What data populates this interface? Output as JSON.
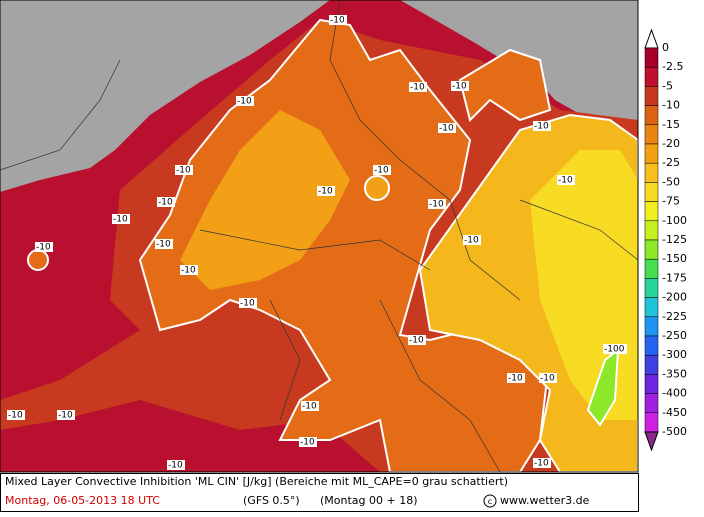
{
  "legend": {
    "labels": [
      0,
      -2.5,
      -5,
      -10,
      -15,
      -20,
      -25,
      -50,
      -75,
      -100,
      -125,
      -150,
      -175,
      -200,
      -225,
      -250,
      -300,
      -350,
      -400,
      -450,
      -500
    ],
    "colors": [
      "#a8002c",
      "#c01030",
      "#c8381e",
      "#dc6214",
      "#ec8410",
      "#f4a014",
      "#f8be1c",
      "#f8dc24",
      "#f0f020",
      "#c4f020",
      "#8ce828",
      "#48dc50",
      "#28d49c",
      "#20c4d8",
      "#2094f0",
      "#2464f0",
      "#4040e0",
      "#7024e0",
      "#a020e0",
      "#d020e0"
    ],
    "top_color": "#ffffff",
    "bottom_color": "#8a2a8a"
  },
  "contour_labels": [
    -10,
    -10,
    -10,
    -10,
    -10,
    -10,
    -10,
    -10,
    -10,
    -10,
    -10,
    -10,
    -10,
    -10,
    -10,
    -10,
    -10,
    -10,
    -10,
    -10,
    -10,
    -10,
    -10,
    -10,
    -10,
    -10,
    -10,
    -100
  ],
  "footer": {
    "title": "Mixed Layer Convective Inhibition 'ML CIN' [J/kg] (Bereiche mit ML_CAPE=0 grau schattiert)",
    "date": "Montag, 06-05-2013  18 UTC",
    "model": "(GFS 0.5°)",
    "run": "(Montag 00 + 18)",
    "credit": "www.wetter3.de"
  }
}
